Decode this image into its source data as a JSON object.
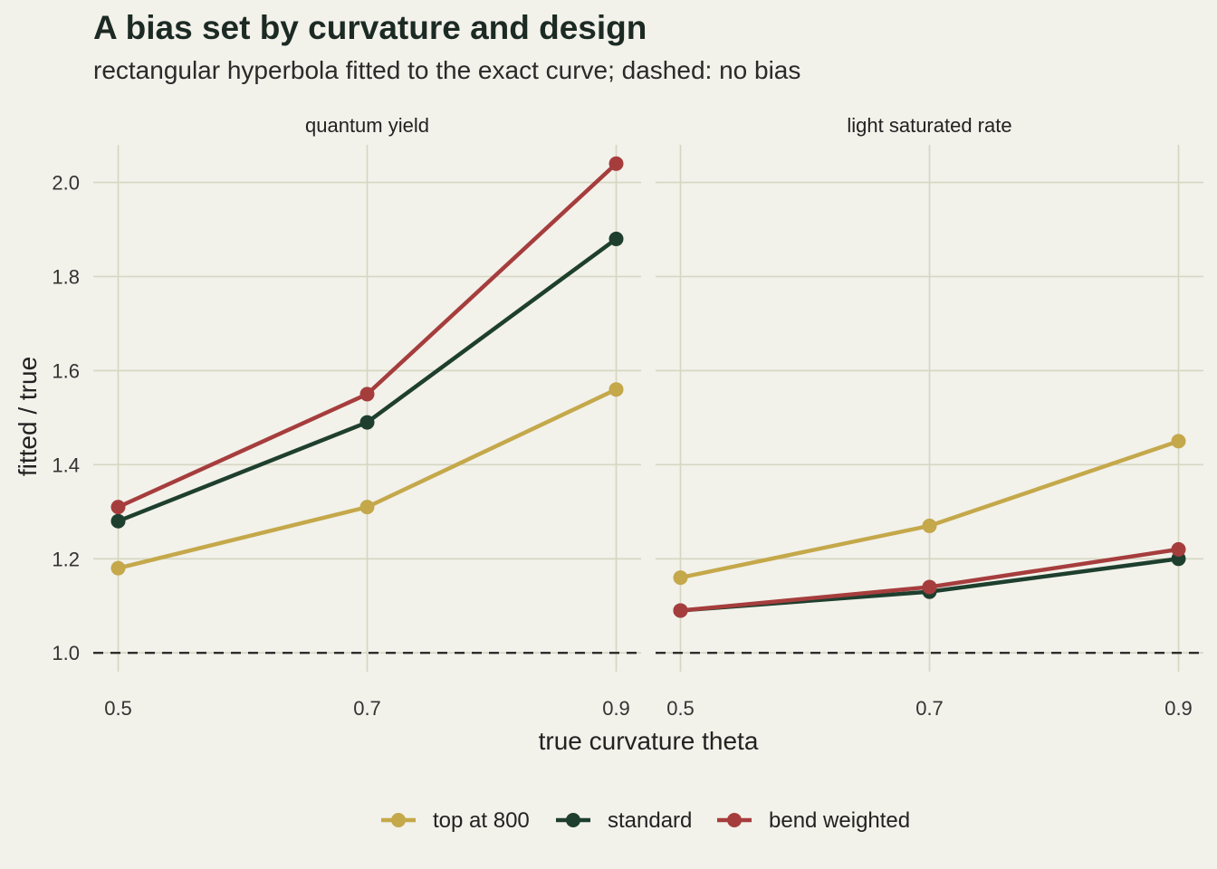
{
  "chart_data": {
    "type": "line",
    "title": "A bias set by curvature and design",
    "subtitle": "rectangular hyperbola fitted to the exact curve; dashed: no bias",
    "xlabel": "true curvature theta",
    "ylabel": "fitted / true",
    "x": [
      0.5,
      0.7,
      0.9
    ],
    "x_ticks": [
      "0.5",
      "0.7",
      "0.9"
    ],
    "y_ticks": [
      "1.0",
      "1.2",
      "1.4",
      "1.6",
      "1.8",
      "2.0"
    ],
    "ylim": [
      0.96,
      2.08
    ],
    "xlim": [
      0.48,
      0.92
    ],
    "reference_line": {
      "y": 1.0,
      "style": "dashed"
    },
    "legend_position": "bottom",
    "grid": true,
    "colors": {
      "top at 800": "#c4a84a",
      "standard": "#1e3f2e",
      "bend weighted": "#a63d3d"
    },
    "panels": [
      {
        "name": "quantum yield",
        "series": [
          {
            "name": "top at 800",
            "values": [
              1.18,
              1.31,
              1.56
            ]
          },
          {
            "name": "standard",
            "values": [
              1.28,
              1.49,
              1.88
            ]
          },
          {
            "name": "bend weighted",
            "values": [
              1.31,
              1.55,
              2.04
            ]
          }
        ]
      },
      {
        "name": "light saturated rate",
        "series": [
          {
            "name": "top at 800",
            "values": [
              1.16,
              1.27,
              1.45
            ]
          },
          {
            "name": "standard",
            "values": [
              1.09,
              1.13,
              1.2
            ]
          },
          {
            "name": "bend weighted",
            "values": [
              1.09,
              1.14,
              1.22
            ]
          }
        ]
      }
    ],
    "legend": [
      "top at 800",
      "standard",
      "bend weighted"
    ]
  }
}
